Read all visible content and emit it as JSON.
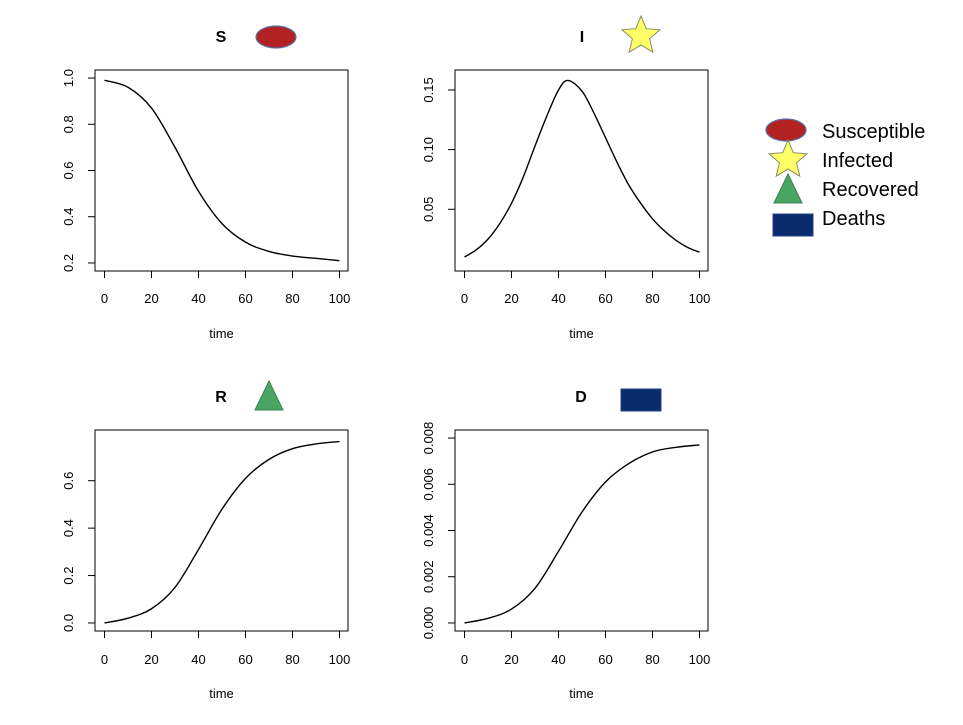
{
  "colors": {
    "susceptible": "#b22222",
    "infected": "#ffff66",
    "recovered": "#4aa564",
    "deaths": "#0b2a6b",
    "line": "#000000"
  },
  "legend": {
    "items": [
      {
        "label": "Susceptible",
        "shape": "ellipse",
        "color": "#b22222"
      },
      {
        "label": "Infected",
        "shape": "star",
        "color": "#ffff66"
      },
      {
        "label": "Recovered",
        "shape": "triangle",
        "color": "#4aa564"
      },
      {
        "label": "Deaths",
        "shape": "rectangle",
        "color": "#0b2a6b"
      }
    ]
  },
  "chart_data": [
    {
      "type": "line",
      "title": "S",
      "icon": "ellipse",
      "xlabel": "time",
      "ylabel": "",
      "xlim": [
        0,
        100
      ],
      "ylim": [
        0.2,
        1.0
      ],
      "xticks": [
        "0",
        "20",
        "40",
        "60",
        "80",
        "100"
      ],
      "yticks": [
        "0.2",
        "0.4",
        "0.6",
        "0.8",
        "1.0"
      ],
      "x": [
        0,
        10,
        20,
        30,
        40,
        50,
        60,
        70,
        80,
        90,
        100
      ],
      "y": [
        0.99,
        0.96,
        0.87,
        0.7,
        0.51,
        0.37,
        0.29,
        0.25,
        0.23,
        0.22,
        0.21
      ]
    },
    {
      "type": "line",
      "title": "I",
      "icon": "star",
      "xlabel": "time",
      "ylabel": "",
      "xlim": [
        0,
        100
      ],
      "ylim": [
        0.005,
        0.16
      ],
      "xticks": [
        "0",
        "20",
        "40",
        "60",
        "80",
        "100"
      ],
      "yticks": [
        "0.05",
        "0.10",
        "0.15"
      ],
      "x": [
        0,
        5,
        10,
        15,
        20,
        25,
        30,
        35,
        40,
        44,
        50,
        55,
        60,
        65,
        70,
        75,
        80,
        85,
        90,
        95,
        100
      ],
      "y": [
        0.01,
        0.016,
        0.025,
        0.038,
        0.055,
        0.077,
        0.103,
        0.128,
        0.15,
        0.158,
        0.149,
        0.131,
        0.11,
        0.089,
        0.07,
        0.055,
        0.042,
        0.032,
        0.024,
        0.018,
        0.014
      ]
    },
    {
      "type": "line",
      "title": "R",
      "icon": "triangle",
      "xlabel": "time",
      "ylabel": "",
      "xlim": [
        0,
        100
      ],
      "ylim": [
        0.0,
        0.78
      ],
      "xticks": [
        "0",
        "20",
        "40",
        "60",
        "80",
        "100"
      ],
      "yticks": [
        "0.0",
        "0.2",
        "0.4",
        "0.6"
      ],
      "x": [
        0,
        10,
        20,
        30,
        40,
        50,
        60,
        70,
        80,
        90,
        100
      ],
      "y": [
        0.0,
        0.02,
        0.06,
        0.15,
        0.31,
        0.48,
        0.61,
        0.69,
        0.735,
        0.755,
        0.765
      ]
    },
    {
      "type": "line",
      "title": "D",
      "icon": "rectangle",
      "xlabel": "time",
      "ylabel": "",
      "xlim": [
        0,
        100
      ],
      "ylim": [
        0.0,
        0.008
      ],
      "xticks": [
        "0",
        "20",
        "40",
        "60",
        "80",
        "100"
      ],
      "yticks": [
        "0.000",
        "0.002",
        "0.004",
        "0.006",
        "0.008"
      ],
      "x": [
        0,
        10,
        20,
        30,
        40,
        50,
        60,
        70,
        80,
        90,
        100
      ],
      "y": [
        0.0,
        0.0002,
        0.0006,
        0.0015,
        0.0031,
        0.0048,
        0.0061,
        0.0069,
        0.0074,
        0.0076,
        0.0077
      ]
    }
  ]
}
